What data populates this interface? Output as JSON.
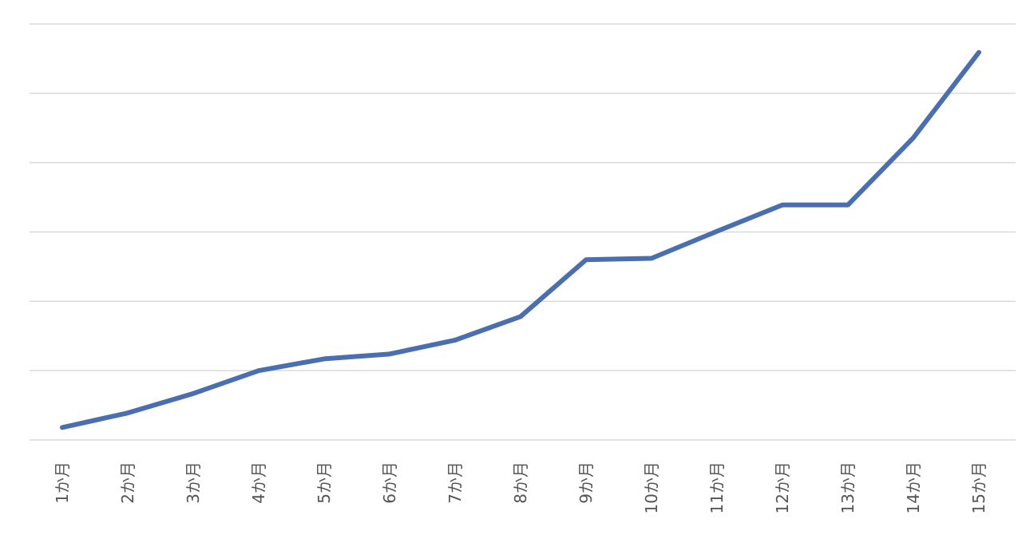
{
  "chart_data": {
    "type": "line",
    "categories": [
      "1か月",
      "2か月",
      "3か月",
      "4か月",
      "5か月",
      "6か月",
      "7か月",
      "8か月",
      "9か月",
      "10か月",
      "11か月",
      "12か月",
      "13か月",
      "14か月",
      "15か月"
    ],
    "series": [
      {
        "color": "#4a6fb0",
        "values": [
          0.18,
          0.39,
          0.67,
          1.0,
          1.17,
          1.24,
          1.44,
          1.78,
          2.6,
          2.62,
          3.01,
          3.39,
          3.39,
          4.36,
          5.59
        ]
      }
    ],
    "ylim": [
      0,
      6
    ],
    "yticks": [
      0,
      1,
      2,
      3,
      4,
      5,
      6
    ],
    "grid": true
  }
}
